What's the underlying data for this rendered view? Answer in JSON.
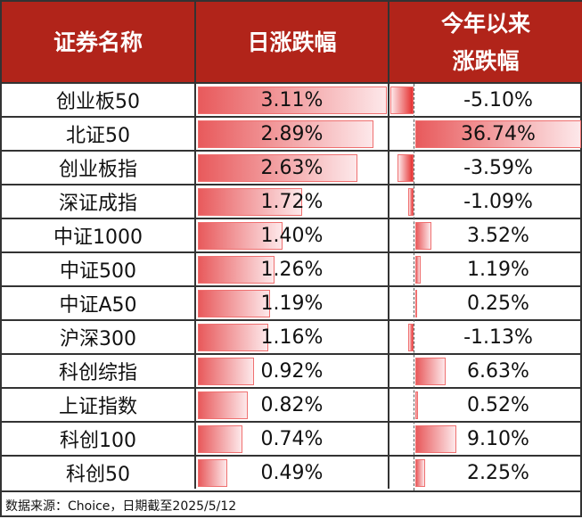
{
  "header": {
    "col1": "证券名称",
    "col2": "日涨跌幅",
    "col3_line1": "今年以来",
    "col3_line2": "涨跌幅"
  },
  "colors": {
    "header_bg": "#b1241a",
    "bar_positive": "#e85a5c",
    "bar_negative": "#e53030"
  },
  "chart_data": {
    "type": "table",
    "columns": [
      "证券名称",
      "日涨跌幅",
      "今年以来涨跌幅"
    ],
    "rows": [
      {
        "name": "创业板50",
        "daily": 3.11,
        "daily_label": "3.11%",
        "ytd": -5.1,
        "ytd_label": "-5.10%"
      },
      {
        "name": "北证50",
        "daily": 2.89,
        "daily_label": "2.89%",
        "ytd": 36.74,
        "ytd_label": "36.74%"
      },
      {
        "name": "创业板指",
        "daily": 2.63,
        "daily_label": "2.63%",
        "ytd": -3.59,
        "ytd_label": "-3.59%"
      },
      {
        "name": "深证成指",
        "daily": 1.72,
        "daily_label": "1.72%",
        "ytd": -1.09,
        "ytd_label": "-1.09%"
      },
      {
        "name": "中证1000",
        "daily": 1.4,
        "daily_label": "1.40%",
        "ytd": 3.52,
        "ytd_label": "3.52%"
      },
      {
        "name": "中证500",
        "daily": 1.26,
        "daily_label": "1.26%",
        "ytd": 1.19,
        "ytd_label": "1.19%"
      },
      {
        "name": "中证A50",
        "daily": 1.19,
        "daily_label": "1.19%",
        "ytd": 0.25,
        "ytd_label": "0.25%"
      },
      {
        "name": "沪深300",
        "daily": 1.16,
        "daily_label": "1.16%",
        "ytd": -1.13,
        "ytd_label": "-1.13%"
      },
      {
        "name": "科创综指",
        "daily": 0.92,
        "daily_label": "0.92%",
        "ytd": 6.63,
        "ytd_label": "6.63%"
      },
      {
        "name": "上证指数",
        "daily": 0.82,
        "daily_label": "0.82%",
        "ytd": 0.52,
        "ytd_label": "0.52%"
      },
      {
        "name": "科创100",
        "daily": 0.74,
        "daily_label": "0.74%",
        "ytd": 9.1,
        "ytd_label": "9.10%"
      },
      {
        "name": "科创50",
        "daily": 0.49,
        "daily_label": "0.49%",
        "ytd": 2.25,
        "ytd_label": "2.25%"
      }
    ]
  },
  "footer": "数据来源：Choice，日期截至2025/5/12"
}
